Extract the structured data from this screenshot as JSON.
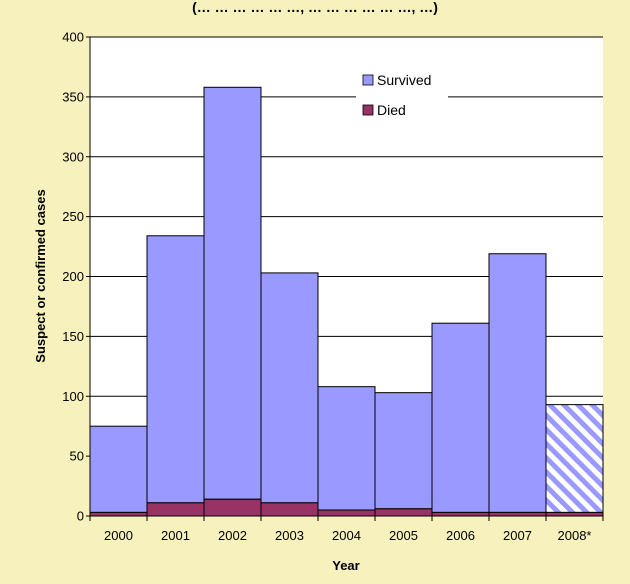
{
  "header_fragment": "(… … … … … …, … … … … … …, …)",
  "chart_data": {
    "type": "bar",
    "stacked": true,
    "categories": [
      "2000",
      "2001",
      "2002",
      "2003",
      "2004",
      "2005",
      "2006",
      "2007",
      "2008*"
    ],
    "series": [
      {
        "name": "Died",
        "color": "#993366",
        "values": [
          3,
          11,
          14,
          11,
          5,
          6,
          3,
          3,
          3
        ]
      },
      {
        "name": "Survived",
        "color": "#9999ff",
        "values": [
          72,
          223,
          344,
          192,
          103,
          97,
          158,
          216,
          90
        ]
      }
    ],
    "partial_year_category": "2008*",
    "partial_year_pattern": "diagonal-hatch",
    "title": "",
    "xlabel": "Year",
    "ylabel": "Suspect or confirmed cases",
    "ylim": [
      0,
      400
    ],
    "yticks": [
      0,
      50,
      100,
      150,
      200,
      250,
      300,
      350,
      400
    ],
    "grid": true,
    "legend_position": "top-right",
    "legend_order": [
      "Survived",
      "Died"
    ],
    "colors": {
      "background": "#f7f1bd",
      "plot_area": "#ffffff",
      "gridline": "#000000"
    }
  }
}
